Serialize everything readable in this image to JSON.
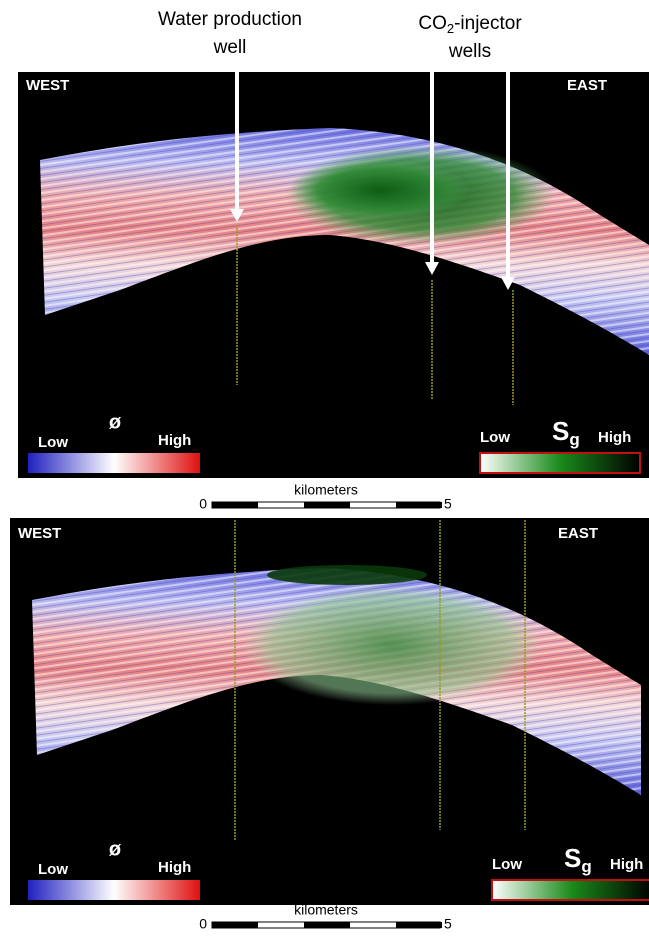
{
  "annotations": {
    "water_well": {
      "line1": "Water production",
      "line2": "well"
    },
    "injector_wells": {
      "prefix": "CO",
      "subscript": "2",
      "suffix": "-injector",
      "line2": "wells"
    }
  },
  "panels": [
    {
      "west": "WEST",
      "east": "EAST",
      "porosity": {
        "symbol": "ø",
        "low": "Low",
        "high": "High"
      },
      "saturation": {
        "symbol": "S",
        "subscript": "g",
        "low": "Low",
        "high": "High"
      },
      "scale": {
        "label": "kilometers",
        "start": 0,
        "end": 5
      }
    },
    {
      "west": "WEST",
      "east": "EAST",
      "porosity": {
        "symbol": "ø",
        "low": "Low",
        "high": "High"
      },
      "saturation": {
        "symbol": "S",
        "subscript": "g",
        "low": "Low",
        "high": "High"
      },
      "scale": {
        "label": "kilometers",
        "start": 0,
        "end": 5
      }
    }
  ]
}
